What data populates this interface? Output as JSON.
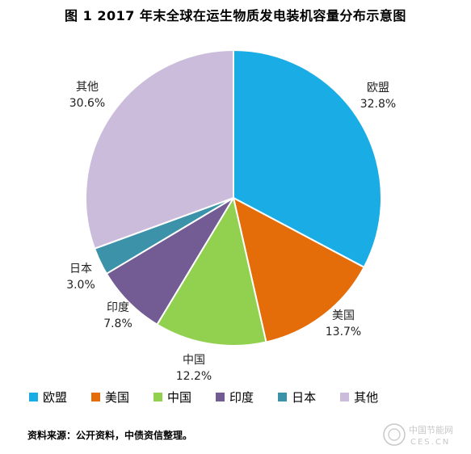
{
  "title": "图 1    2017 年末全球在运生物质发电装机容量分布示意图",
  "chart_data": {
    "type": "pie",
    "start_angle_deg": 0,
    "direction": "clockwise",
    "slices": [
      {
        "name": "欧盟",
        "value": 32.8,
        "label": "32.8%",
        "color": "#1aace5"
      },
      {
        "name": "美国",
        "value": 13.7,
        "label": "13.7%",
        "color": "#e46d0a"
      },
      {
        "name": "中国",
        "value": 12.2,
        "label": "12.2%",
        "color": "#92d050"
      },
      {
        "name": "印度",
        "value": 7.8,
        "label": "7.8%",
        "color": "#735b93"
      },
      {
        "name": "日本",
        "value": 3.0,
        "label": "3.0%",
        "color": "#3c92a8"
      },
      {
        "name": "其他",
        "value": 30.6,
        "label": "30.6%",
        "color": "#cbbcdc"
      }
    ],
    "legend_position": "bottom"
  },
  "source": "资料来源：公开资料，中债资信整理。",
  "watermark": {
    "text_cn": "中国节能网",
    "text_en": "CES.CN"
  }
}
